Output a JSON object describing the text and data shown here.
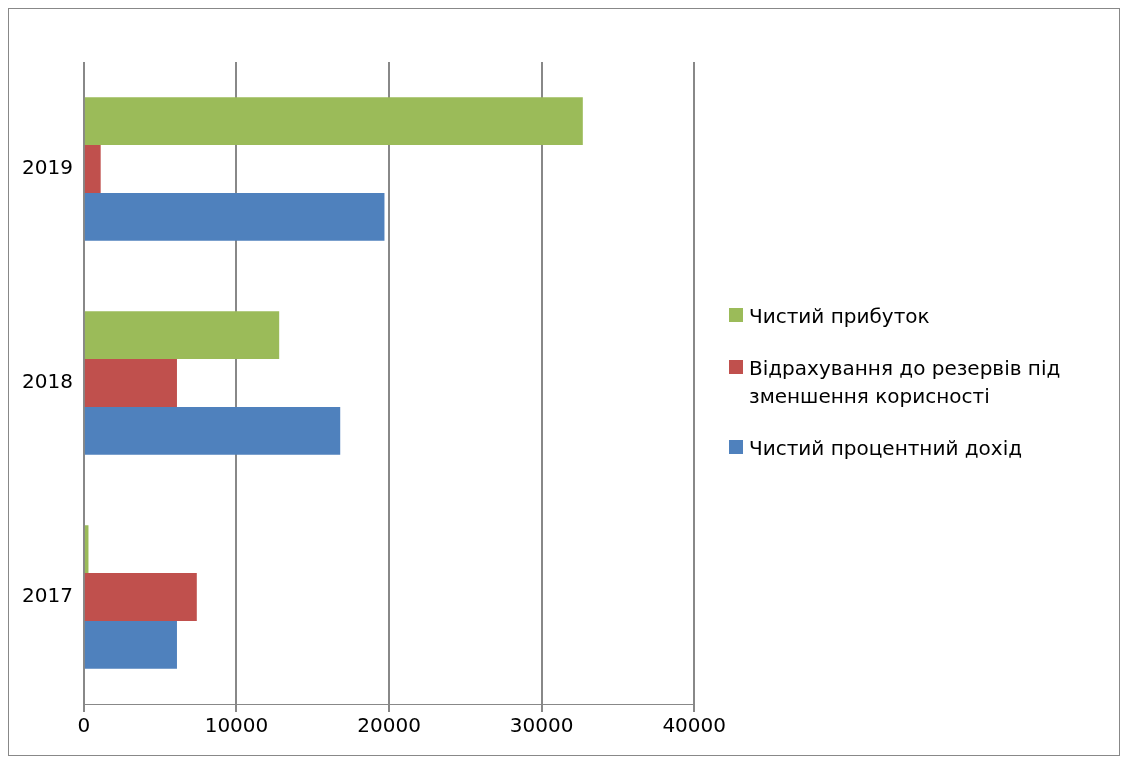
{
  "chart_data": {
    "type": "bar",
    "orientation": "horizontal",
    "categories": [
      "2019",
      "2018",
      "2017"
    ],
    "series": [
      {
        "name": "Чистий прибуток",
        "color": "#9bbb59",
        "values": [
          32700,
          12800,
          300
        ]
      },
      {
        "name": "Відрахування до резервів під зменшення корисності",
        "color": "#c0504d",
        "values": [
          1100,
          6100,
          7400
        ]
      },
      {
        "name": "Чистий процентний дохід",
        "color": "#4f81bd",
        "values": [
          19700,
          16800,
          6100
        ]
      }
    ],
    "xlim": [
      0,
      40000
    ],
    "xticks": [
      0,
      10000,
      20000,
      30000,
      40000
    ],
    "grid": "x",
    "legend": "right"
  }
}
